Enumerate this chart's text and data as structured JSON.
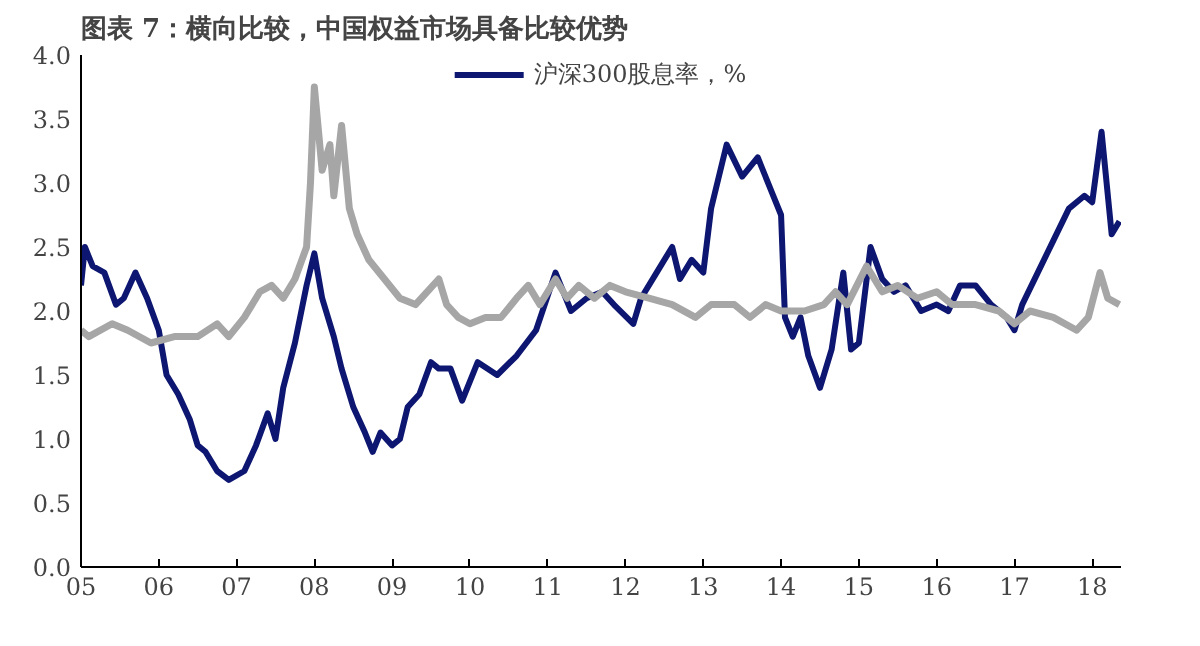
{
  "chart_data": {
    "type": "line",
    "title": "图表 7：横向比较，中国权益市场具备比较优势",
    "xlim": [
      2005,
      2018.37
    ],
    "ylim": [
      0,
      4
    ],
    "xticks": [
      {
        "value": 2005,
        "label": "05"
      },
      {
        "value": 2006,
        "label": "06"
      },
      {
        "value": 2007,
        "label": "07"
      },
      {
        "value": 2008,
        "label": "08"
      },
      {
        "value": 2009,
        "label": "09"
      },
      {
        "value": 2010,
        "label": "10"
      },
      {
        "value": 2011,
        "label": "11"
      },
      {
        "value": 2012,
        "label": "12"
      },
      {
        "value": 2013,
        "label": "13"
      },
      {
        "value": 2014,
        "label": "14"
      },
      {
        "value": 2015,
        "label": "15"
      },
      {
        "value": 2016,
        "label": "16"
      },
      {
        "value": 2017,
        "label": "17"
      },
      {
        "value": 2018,
        "label": "18"
      }
    ],
    "yticks": [
      {
        "value": 0,
        "label": "0.0"
      },
      {
        "value": 0.5,
        "label": "0.5"
      },
      {
        "value": 1,
        "label": "1.0"
      },
      {
        "value": 1.5,
        "label": "1.5"
      },
      {
        "value": 2,
        "label": "2.0"
      },
      {
        "value": 2.5,
        "label": "2.5"
      },
      {
        "value": 3,
        "label": "3.0"
      },
      {
        "value": 3.5,
        "label": "3.5"
      },
      {
        "value": 4,
        "label": "4.0"
      }
    ],
    "grid": false,
    "legend": "top",
    "marker": "none",
    "line_style": "solid",
    "series": [
      {
        "name": "沪深300股息率，%",
        "color": "#0d1670",
        "x": [
          2005.0,
          2005.05,
          2005.15,
          2005.3,
          2005.45,
          2005.55,
          2005.7,
          2005.85,
          2006.0,
          2006.1,
          2006.25,
          2006.4,
          2006.5,
          2006.6,
          2006.75,
          2006.9,
          2007.1,
          2007.25,
          2007.4,
          2007.5,
          2007.6,
          2007.75,
          2007.9,
          2008.0,
          2008.1,
          2008.25,
          2008.35,
          2008.5,
          2008.65,
          2008.75,
          2008.85,
          2009.0,
          2009.1,
          2009.2,
          2009.35,
          2009.5,
          2009.6,
          2009.75,
          2009.9,
          2010.1,
          2010.35,
          2010.6,
          2010.85,
          2011.1,
          2011.3,
          2011.5,
          2011.7,
          2011.85,
          2012.1,
          2012.2,
          2012.4,
          2012.6,
          2012.7,
          2012.85,
          2013.0,
          2013.1,
          2013.3,
          2013.5,
          2013.7,
          2013.9,
          2014.0,
          2014.05,
          2014.15,
          2014.25,
          2014.35,
          2014.5,
          2014.65,
          2014.8,
          2014.9,
          2015.0,
          2015.15,
          2015.3,
          2015.45,
          2015.6,
          2015.8,
          2016.0,
          2016.15,
          2016.3,
          2016.5,
          2016.7,
          2016.9,
          2017.0,
          2017.1,
          2017.3,
          2017.5,
          2017.7,
          2017.9,
          2018.0,
          2018.12,
          2018.25,
          2018.35
        ],
        "values": [
          2.2,
          2.5,
          2.35,
          2.3,
          2.05,
          2.1,
          2.3,
          2.1,
          1.85,
          1.5,
          1.35,
          1.15,
          0.95,
          0.9,
          0.75,
          0.68,
          0.75,
          0.95,
          1.2,
          1.0,
          1.4,
          1.75,
          2.2,
          2.45,
          2.1,
          1.8,
          1.55,
          1.25,
          1.05,
          0.9,
          1.05,
          0.95,
          1.0,
          1.25,
          1.35,
          1.6,
          1.55,
          1.55,
          1.3,
          1.6,
          1.5,
          1.65,
          1.85,
          2.3,
          2.0,
          2.1,
          2.15,
          2.05,
          1.9,
          2.1,
          2.3,
          2.5,
          2.25,
          2.4,
          2.3,
          2.8,
          3.3,
          3.05,
          3.2,
          2.9,
          2.75,
          1.95,
          1.8,
          1.95,
          1.65,
          1.4,
          1.7,
          2.3,
          1.7,
          1.75,
          2.5,
          2.25,
          2.15,
          2.2,
          2.0,
          2.05,
          2.0,
          2.2,
          2.2,
          2.05,
          1.95,
          1.85,
          2.05,
          2.3,
          2.55,
          2.8,
          2.9,
          2.85,
          3.4,
          2.6,
          2.7
        ]
      },
      {
        "color": "#a6a6a6",
        "x": [
          2005.0,
          2005.1,
          2005.4,
          2005.6,
          2005.9,
          2006.2,
          2006.5,
          2006.75,
          2006.9,
          2007.1,
          2007.3,
          2007.45,
          2007.6,
          2007.75,
          2007.9,
          2007.95,
          2008.0,
          2008.1,
          2008.2,
          2008.25,
          2008.35,
          2008.45,
          2008.55,
          2008.7,
          2008.9,
          2009.1,
          2009.3,
          2009.45,
          2009.6,
          2009.7,
          2009.85,
          2010.0,
          2010.2,
          2010.4,
          2010.6,
          2010.75,
          2010.9,
          2011.1,
          2011.25,
          2011.4,
          2011.6,
          2011.8,
          2012.0,
          2012.3,
          2012.6,
          2012.9,
          2013.1,
          2013.4,
          2013.6,
          2013.8,
          2014.0,
          2014.3,
          2014.55,
          2014.7,
          2014.85,
          2015.1,
          2015.3,
          2015.5,
          2015.75,
          2016.0,
          2016.2,
          2016.5,
          2016.8,
          2017.0,
          2017.2,
          2017.5,
          2017.8,
          2017.95,
          2018.1,
          2018.2,
          2018.35
        ],
        "values": [
          1.85,
          1.8,
          1.9,
          1.85,
          1.75,
          1.8,
          1.8,
          1.9,
          1.8,
          1.95,
          2.15,
          2.2,
          2.1,
          2.25,
          2.5,
          3.0,
          3.75,
          3.1,
          3.3,
          2.9,
          3.45,
          2.8,
          2.6,
          2.4,
          2.25,
          2.1,
          2.05,
          2.15,
          2.25,
          2.05,
          1.95,
          1.9,
          1.95,
          1.95,
          2.1,
          2.2,
          2.05,
          2.25,
          2.1,
          2.2,
          2.1,
          2.2,
          2.15,
          2.1,
          2.05,
          1.95,
          2.05,
          2.05,
          1.95,
          2.05,
          2.0,
          2.0,
          2.05,
          2.15,
          2.05,
          2.35,
          2.15,
          2.2,
          2.1,
          2.15,
          2.05,
          2.05,
          2.0,
          1.9,
          2.0,
          1.95,
          1.85,
          1.95,
          2.3,
          2.1,
          2.05
        ]
      }
    ]
  }
}
